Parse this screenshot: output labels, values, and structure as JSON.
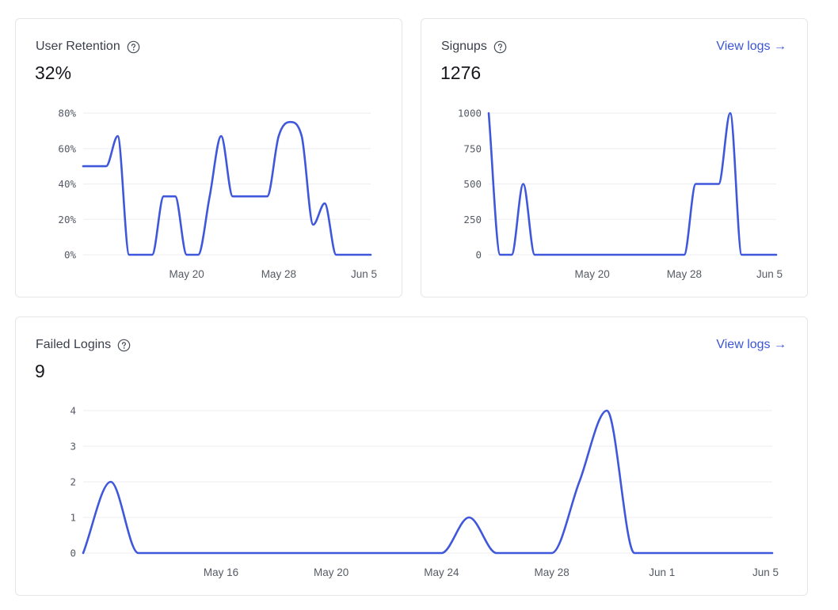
{
  "cards": {
    "retention": {
      "title": "User Retention",
      "value": "32%"
    },
    "signups": {
      "title": "Signups",
      "value": "1276",
      "link": "View logs →"
    },
    "failed": {
      "title": "Failed Logins",
      "value": "9",
      "link": "View logs →"
    }
  },
  "colors": {
    "series": "#3f57da",
    "link": "#3b55d6",
    "grid": "#eceef1"
  },
  "chart_data": [
    {
      "id": "retention",
      "type": "line",
      "title": "User Retention",
      "x": [
        11,
        12,
        13,
        14,
        15,
        16,
        17,
        18,
        19,
        20,
        21,
        22,
        23,
        24,
        25,
        26,
        27,
        28,
        29,
        30,
        31,
        32,
        33,
        34,
        35,
        36
      ],
      "values": [
        50,
        50,
        50,
        67,
        0,
        0,
        0,
        33,
        33,
        0,
        0,
        33,
        67,
        33,
        33,
        33,
        33,
        67,
        75,
        67,
        17,
        29,
        0,
        0,
        0,
        0
      ],
      "ylim": [
        0,
        80
      ],
      "yticks": [
        0,
        20,
        40,
        60,
        80
      ],
      "ytick_labels": [
        "0%",
        "20%",
        "40%",
        "60%",
        "80%"
      ],
      "xticks": [
        {
          "x": 20,
          "label": "May 20"
        },
        {
          "x": 28,
          "label": "May 28"
        },
        {
          "x": 36,
          "label": "Jun 5"
        }
      ]
    },
    {
      "id": "signups",
      "type": "line",
      "title": "Signups",
      "x": [
        11,
        12,
        13,
        14,
        15,
        16,
        17,
        18,
        19,
        20,
        21,
        22,
        23,
        24,
        25,
        26,
        27,
        28,
        29,
        30,
        31,
        32,
        33,
        34,
        35,
        36
      ],
      "values": [
        1000,
        0,
        0,
        500,
        0,
        0,
        0,
        0,
        0,
        0,
        0,
        0,
        0,
        0,
        0,
        0,
        0,
        0,
        500,
        500,
        500,
        1000,
        0,
        0,
        0,
        0
      ],
      "ylim": [
        0,
        1000
      ],
      "yticks": [
        0,
        250,
        500,
        750,
        1000
      ],
      "ytick_labels": [
        "0",
        "250",
        "500",
        "750",
        "1000"
      ],
      "xticks": [
        {
          "x": 20,
          "label": "May 20"
        },
        {
          "x": 28,
          "label": "May 28"
        },
        {
          "x": 36,
          "label": "Jun 5"
        }
      ]
    },
    {
      "id": "failed",
      "type": "line",
      "title": "Failed Logins",
      "x": [
        11,
        12,
        13,
        14,
        15,
        16,
        17,
        18,
        19,
        20,
        21,
        22,
        23,
        24,
        25,
        26,
        27,
        28,
        29,
        30,
        31,
        32,
        33,
        34,
        35,
        36
      ],
      "values": [
        0,
        2,
        0,
        0,
        0,
        0,
        0,
        0,
        0,
        0,
        0,
        0,
        0,
        0,
        1,
        0,
        0,
        0,
        2,
        4,
        0,
        0,
        0,
        0,
        0,
        0
      ],
      "ylim": [
        0,
        4
      ],
      "yticks": [
        0,
        1,
        2,
        3,
        4
      ],
      "ytick_labels": [
        "0",
        "1",
        "2",
        "3",
        "4"
      ],
      "xticks": [
        {
          "x": 16,
          "label": "May 16"
        },
        {
          "x": 20,
          "label": "May 20"
        },
        {
          "x": 24,
          "label": "May 24"
        },
        {
          "x": 28,
          "label": "May 28"
        },
        {
          "x": 32,
          "label": "Jun 1"
        },
        {
          "x": 36,
          "label": "Jun 5"
        }
      ]
    }
  ]
}
